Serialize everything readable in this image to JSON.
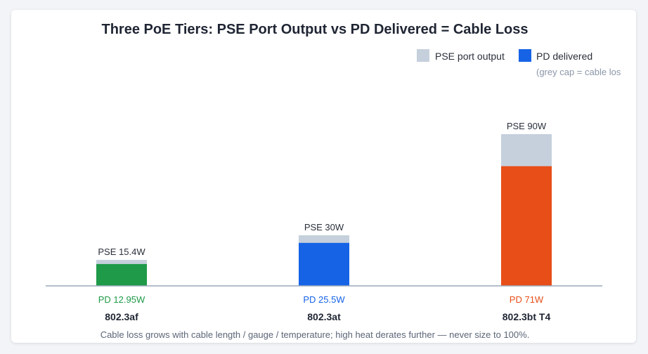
{
  "chart_data": {
    "type": "bar",
    "title": "Three PoE Tiers: PSE Port Output vs PD Delivered = Cable Loss",
    "categories": [
      "802.3af",
      "802.3at",
      "802.3bt T4"
    ],
    "series": [
      {
        "name": "PSE port output",
        "values": [
          15.4,
          30,
          90
        ],
        "labels": [
          "PSE 15.4W",
          "PSE 30W",
          "PSE 90W"
        ]
      },
      {
        "name": "PD delivered",
        "values": [
          12.95,
          25.5,
          71
        ],
        "labels": [
          "PD 12.95W",
          "PD 25.5W",
          "PD 71W"
        ]
      }
    ],
    "ylim": [
      0,
      100
    ],
    "legend": {
      "position": "top-right",
      "note": "(grey cap = cable los"
    },
    "grid": false,
    "footnote": "Cable loss grows with cable length / gauge / temperature; high heat derates further — never size to 100%.",
    "colors": {
      "pse_cap": "#c5d0dc",
      "pd_bars": [
        "#1e9a48",
        "#1763e6",
        "#e84e18"
      ],
      "axis": "#9aaabb",
      "title": "#1f2533",
      "text": "#2a2f3a",
      "note": "#8a97a8"
    }
  }
}
